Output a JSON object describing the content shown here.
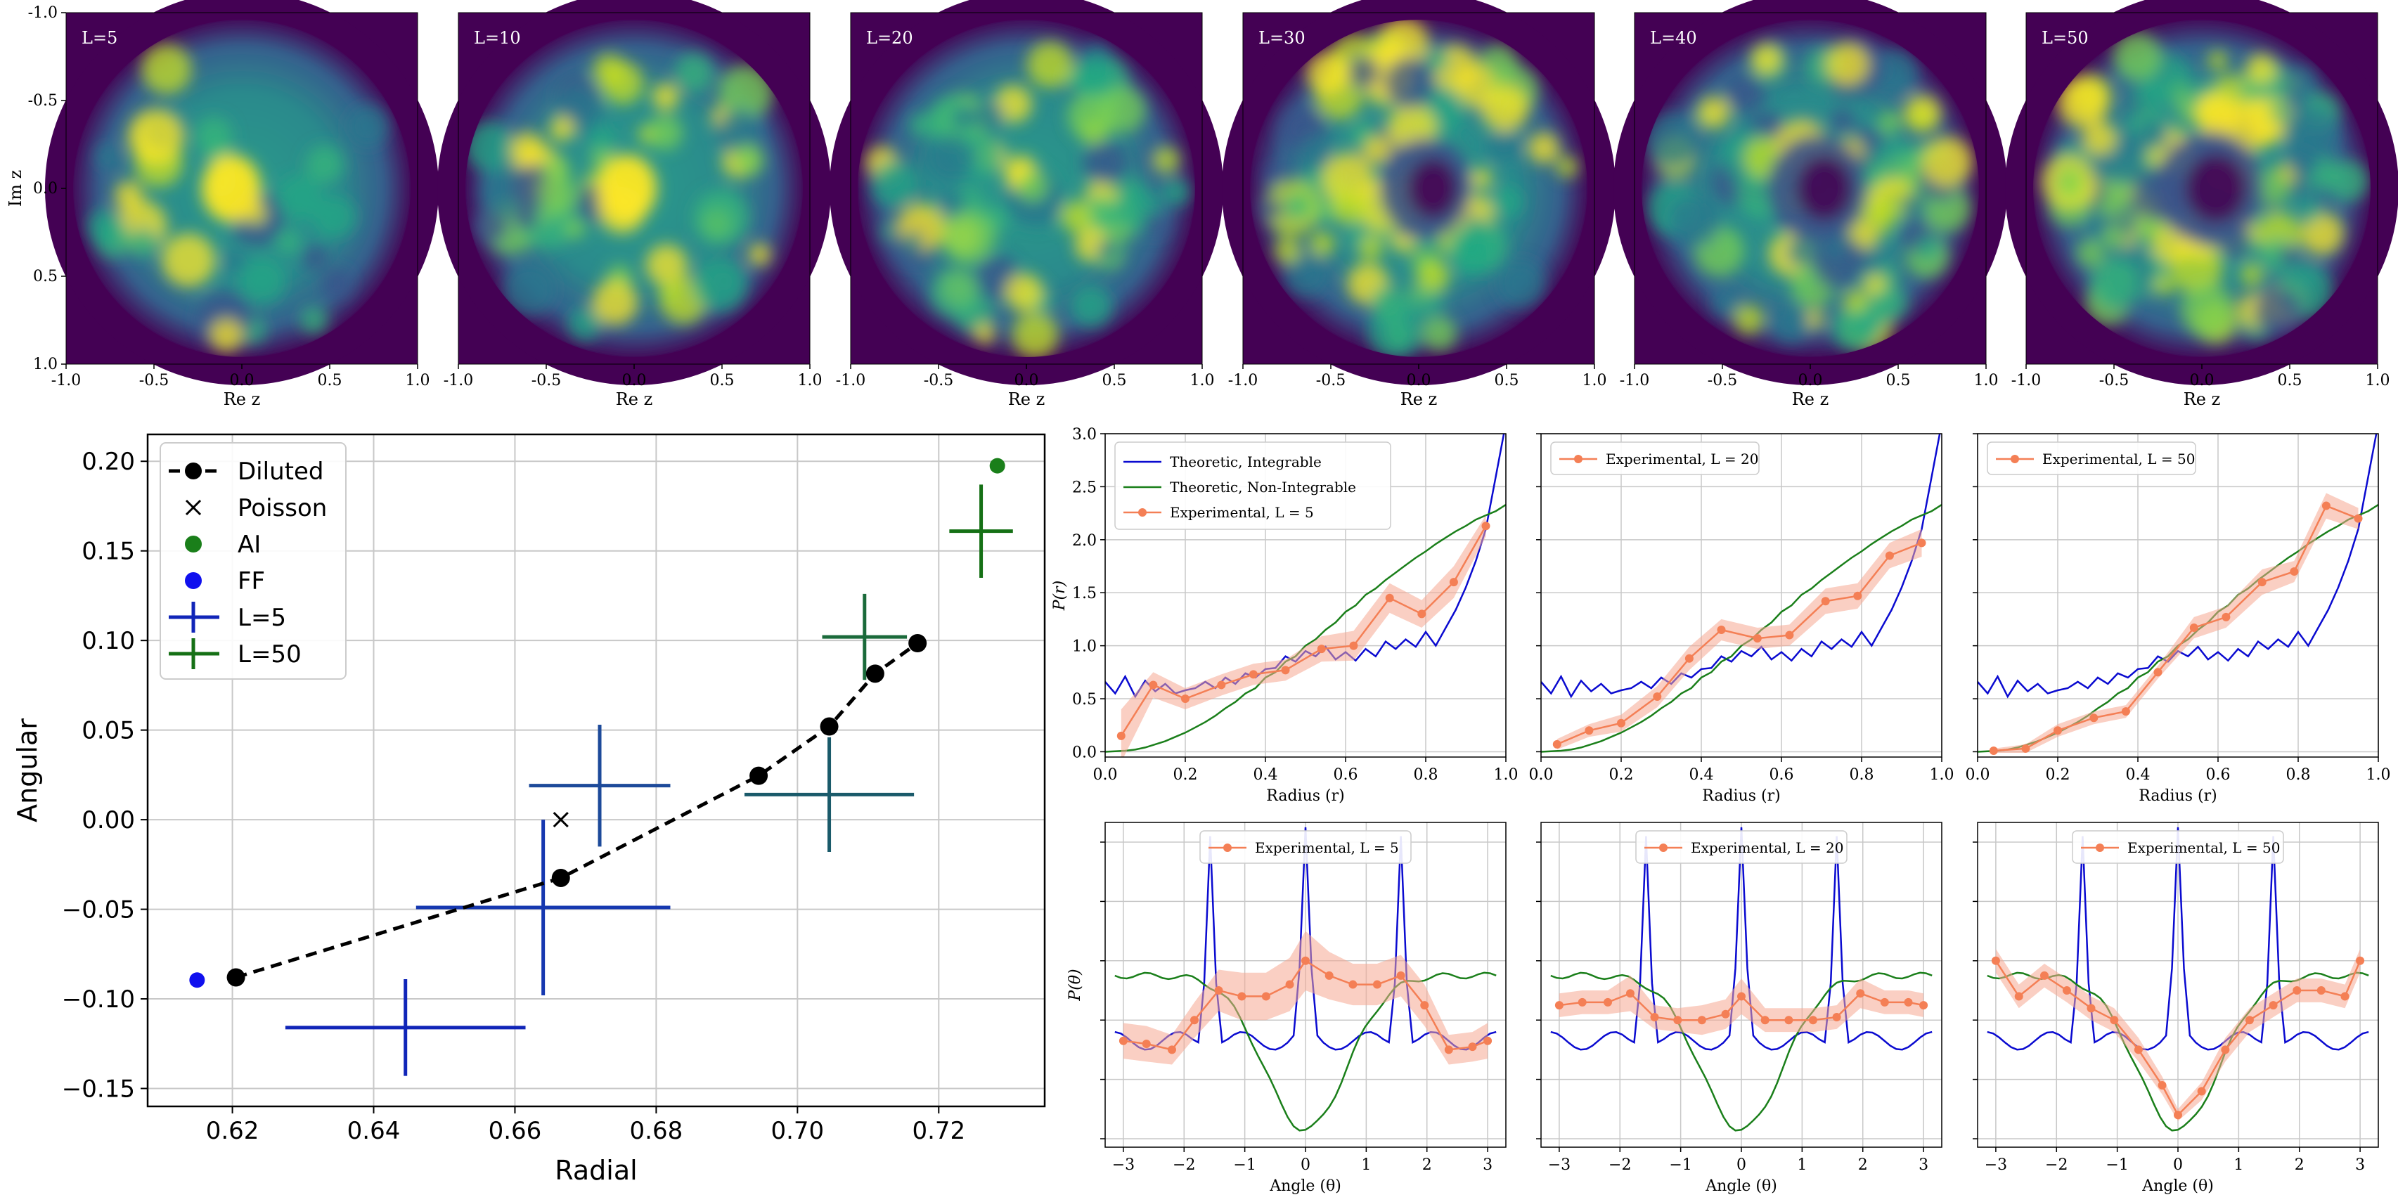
{
  "chart_data": [
    {
      "id": "density",
      "type": "heatmap",
      "panels": [
        "L=5",
        "L=10",
        "L=20",
        "L=30",
        "L=40",
        "L=50"
      ],
      "xlabel": "Re z",
      "ylabel": "Im z",
      "xticks": [
        "-1.0",
        "-0.5",
        "0.0",
        "0.5",
        "1.0"
      ],
      "yticks": [
        "-1.0",
        "-0.5",
        "0.0",
        "0.5",
        "1.0"
      ],
      "xlim": [
        -1.0,
        1.0
      ],
      "ylim": [
        -1.0,
        1.0
      ],
      "colormap": "viridis",
      "background": "#440154"
    },
    {
      "id": "scatter",
      "type": "scatter",
      "xlabel": "Radial",
      "ylabel": "Angular",
      "xlim": [
        0.608,
        0.735
      ],
      "ylim": [
        -0.16,
        0.215
      ],
      "xticks": [
        0.62,
        0.64,
        0.66,
        0.68,
        0.7,
        0.72
      ],
      "xticklabels": [
        "0.62",
        "0.64",
        "0.66",
        "0.68",
        "0.70",
        "0.72"
      ],
      "yticks": [
        -0.15,
        -0.1,
        -0.05,
        0.0,
        0.05,
        0.1,
        0.15,
        0.2
      ],
      "yticklabels": [
        "−0.15",
        "−0.10",
        "−0.05",
        "0.00",
        "0.05",
        "0.10",
        "0.15",
        "0.20"
      ],
      "grid": true,
      "legend_position": "upper-left",
      "legend": [
        {
          "label": "Diluted",
          "marker": "line-dot",
          "color": "#000000"
        },
        {
          "label": "Poisson",
          "marker": "x",
          "color": "#000000"
        },
        {
          "label": "AI",
          "marker": "dot",
          "color": "#1a7f1a"
        },
        {
          "label": "FF",
          "marker": "dot",
          "color": "#1010ee"
        },
        {
          "label": "L=5",
          "marker": "cross",
          "color": "#1025b8"
        },
        {
          "label": "L=50",
          "marker": "cross",
          "color": "#157015"
        }
      ],
      "diluted": [
        [
          0.6205,
          -0.088
        ],
        [
          0.6665,
          -0.0325
        ],
        [
          0.6945,
          0.0245
        ],
        [
          0.7045,
          0.052
        ],
        [
          0.711,
          0.0815
        ],
        [
          0.717,
          0.0985
        ]
      ],
      "poisson": [
        [
          0.6665,
          0.0
        ]
      ],
      "ai": [
        [
          0.7283,
          0.1975
        ]
      ],
      "ff": [
        [
          0.615,
          -0.0895
        ]
      ],
      "errorbars": [
        {
          "x": 0.6445,
          "y": -0.116,
          "xerr": 0.017,
          "yerr": 0.027,
          "color": "#1025b8"
        },
        {
          "x": 0.664,
          "y": -0.049,
          "xerr": 0.018,
          "yerr": 0.049,
          "color": "#1638b0"
        },
        {
          "x": 0.672,
          "y": 0.019,
          "xerr": 0.01,
          "yerr": 0.034,
          "color": "#1d4a9a"
        },
        {
          "x": 0.7045,
          "y": 0.014,
          "xerr": 0.012,
          "yerr": 0.032,
          "color": "#1a5a6a"
        },
        {
          "x": 0.7095,
          "y": 0.102,
          "xerr": 0.006,
          "yerr": 0.024,
          "color": "#1a6a3a"
        },
        {
          "x": 0.726,
          "y": 0.161,
          "xerr": 0.0045,
          "yerr": 0.026,
          "color": "#157015"
        }
      ]
    },
    {
      "id": "radial",
      "type": "line",
      "xlabel": "Radius (r)",
      "ylabel": "P(r)",
      "xlim": [
        0,
        1.0
      ],
      "ylim": [
        -0.05,
        3.0
      ],
      "xticks": [
        "0.0",
        "0.2",
        "0.4",
        "0.6",
        "0.8",
        "1.0"
      ],
      "yticks": [
        "0.0",
        "0.5",
        "1.0",
        "1.5",
        "2.0",
        "2.5",
        "3.0"
      ],
      "theory": {
        "integrable": {
          "name": "Theoretic, Integrable",
          "color": "#0a0ad0",
          "x": [
            0.0,
            0.025,
            0.05,
            0.075,
            0.1,
            0.125,
            0.15,
            0.175,
            0.2,
            0.225,
            0.25,
            0.275,
            0.3,
            0.325,
            0.35,
            0.375,
            0.4,
            0.425,
            0.45,
            0.475,
            0.5,
            0.525,
            0.55,
            0.575,
            0.6,
            0.625,
            0.65,
            0.675,
            0.7,
            0.725,
            0.75,
            0.775,
            0.8,
            0.825,
            0.85,
            0.875,
            0.9,
            0.925,
            0.95,
            0.975,
            1.0
          ],
          "y": [
            0.66,
            0.55,
            0.71,
            0.52,
            0.67,
            0.57,
            0.64,
            0.55,
            0.58,
            0.6,
            0.66,
            0.6,
            0.7,
            0.64,
            0.74,
            0.7,
            0.78,
            0.79,
            0.9,
            0.85,
            0.95,
            0.9,
            0.99,
            0.87,
            0.94,
            0.86,
            0.97,
            0.9,
            1.04,
            0.97,
            1.06,
            0.99,
            1.13,
            1.0,
            1.17,
            1.34,
            1.55,
            1.8,
            2.1,
            2.6,
            3.1
          ]
        },
        "nonintegrable": {
          "name": "Theoretic, Non-Integrable",
          "color": "#1a7f1a",
          "x": [
            0.0,
            0.025,
            0.05,
            0.075,
            0.1,
            0.125,
            0.15,
            0.175,
            0.2,
            0.225,
            0.25,
            0.275,
            0.3,
            0.325,
            0.35,
            0.375,
            0.4,
            0.425,
            0.45,
            0.475,
            0.5,
            0.525,
            0.55,
            0.575,
            0.6,
            0.625,
            0.65,
            0.675,
            0.7,
            0.725,
            0.75,
            0.775,
            0.8,
            0.825,
            0.85,
            0.875,
            0.9,
            0.925,
            0.95,
            0.975,
            1.0
          ],
          "y": [
            0.0,
            0.005,
            0.01,
            0.02,
            0.04,
            0.07,
            0.1,
            0.14,
            0.18,
            0.23,
            0.28,
            0.34,
            0.41,
            0.47,
            0.55,
            0.6,
            0.7,
            0.75,
            0.85,
            0.9,
            1.0,
            1.06,
            1.15,
            1.22,
            1.32,
            1.38,
            1.48,
            1.54,
            1.62,
            1.69,
            1.76,
            1.83,
            1.89,
            1.96,
            2.02,
            2.08,
            2.13,
            2.19,
            2.23,
            2.27,
            2.33
          ]
        }
      },
      "panels": [
        {
          "legend": [
            "Theoretic, Integrable",
            "Theoretic, Non-Integrable",
            "Experimental, L = 5"
          ],
          "show_theory_legend": true,
          "exp_name": "Experimental, L = 5",
          "exp_x": [
            0.04,
            0.12,
            0.2,
            0.29,
            0.37,
            0.45,
            0.54,
            0.62,
            0.71,
            0.79,
            0.87,
            0.95
          ],
          "exp_y": [
            0.15,
            0.63,
            0.5,
            0.63,
            0.73,
            0.77,
            0.97,
            1.0,
            1.45,
            1.3,
            1.6,
            2.13
          ],
          "band": [
            0.25,
            0.12,
            0.1,
            0.1,
            0.1,
            0.1,
            0.12,
            0.14,
            0.14,
            0.13,
            0.15,
            0.1
          ]
        },
        {
          "legend": [
            "Experimental, L = 20"
          ],
          "show_theory_legend": false,
          "exp_name": "Experimental, L = 20",
          "exp_x": [
            0.04,
            0.12,
            0.2,
            0.29,
            0.37,
            0.45,
            0.54,
            0.62,
            0.71,
            0.79,
            0.87,
            0.95
          ],
          "exp_y": [
            0.07,
            0.2,
            0.27,
            0.52,
            0.88,
            1.15,
            1.07,
            1.1,
            1.42,
            1.47,
            1.85,
            1.97
          ],
          "band": [
            0.05,
            0.06,
            0.08,
            0.1,
            0.11,
            0.1,
            0.1,
            0.1,
            0.12,
            0.12,
            0.12,
            0.13
          ]
        },
        {
          "legend": [
            "Experimental, L = 50"
          ],
          "show_theory_legend": false,
          "exp_name": "Experimental, L = 50",
          "exp_x": [
            0.04,
            0.12,
            0.2,
            0.29,
            0.37,
            0.45,
            0.54,
            0.62,
            0.71,
            0.79,
            0.87,
            0.95
          ],
          "exp_y": [
            0.01,
            0.03,
            0.2,
            0.32,
            0.38,
            0.75,
            1.17,
            1.27,
            1.6,
            1.7,
            2.32,
            2.2
          ],
          "band": [
            0.02,
            0.04,
            0.06,
            0.06,
            0.06,
            0.06,
            0.1,
            0.1,
            0.12,
            0.1,
            0.12,
            0.1
          ]
        }
      ]
    },
    {
      "id": "angular",
      "type": "line",
      "xlabel": "Angle (θ)",
      "ylabel": "P(θ)",
      "xlim": [
        -3.3,
        3.3
      ],
      "ylim": [
        0,
        1
      ],
      "xticks": [
        "−3",
        "−2",
        "−1",
        "0",
        "1",
        "2",
        "3"
      ],
      "theory_integrable_spikes": [
        -1.57,
        0.0,
        1.57
      ],
      "panels": [
        {
          "legend": "Experimental, L = 5",
          "exp_x": [
            -3.0,
            -2.62,
            -2.2,
            -1.83,
            -1.43,
            -1.05,
            -0.65,
            -0.26,
            0.0,
            0.39,
            0.78,
            1.18,
            1.57,
            1.96,
            2.36,
            2.75,
            3.0
          ],
          "exp_y": [
            0.33,
            0.32,
            0.3,
            0.4,
            0.5,
            0.48,
            0.48,
            0.52,
            0.6,
            0.55,
            0.52,
            0.52,
            0.55,
            0.45,
            0.3,
            0.31,
            0.33
          ],
          "band": [
            0.06,
            0.06,
            0.05,
            0.06,
            0.07,
            0.08,
            0.08,
            0.09,
            0.1,
            0.08,
            0.07,
            0.07,
            0.07,
            0.07,
            0.05,
            0.05,
            0.06
          ]
        },
        {
          "legend": "Experimental, L = 20",
          "exp_x": [
            -3.0,
            -2.62,
            -2.2,
            -1.83,
            -1.43,
            -1.05,
            -0.65,
            -0.26,
            0.0,
            0.39,
            0.78,
            1.18,
            1.57,
            1.96,
            2.36,
            2.75,
            3.0
          ],
          "exp_y": [
            0.45,
            0.46,
            0.46,
            0.49,
            0.41,
            0.4,
            0.4,
            0.42,
            0.48,
            0.4,
            0.4,
            0.4,
            0.41,
            0.49,
            0.46,
            0.46,
            0.45
          ],
          "band": [
            0.04,
            0.04,
            0.04,
            0.06,
            0.04,
            0.04,
            0.05,
            0.05,
            0.06,
            0.04,
            0.04,
            0.04,
            0.04,
            0.05,
            0.04,
            0.04,
            0.04
          ]
        },
        {
          "legend": "Experimental, L = 50",
          "exp_x": [
            -3.0,
            -2.62,
            -2.2,
            -1.83,
            -1.43,
            -1.05,
            -0.65,
            -0.26,
            0.0,
            0.39,
            0.78,
            1.18,
            1.57,
            1.96,
            2.36,
            2.75,
            3.0
          ],
          "exp_y": [
            0.6,
            0.48,
            0.55,
            0.5,
            0.44,
            0.4,
            0.3,
            0.18,
            0.08,
            0.16,
            0.3,
            0.4,
            0.45,
            0.5,
            0.5,
            0.48,
            0.6
          ],
          "band": [
            0.04,
            0.04,
            0.04,
            0.04,
            0.04,
            0.04,
            0.04,
            0.03,
            0.02,
            0.03,
            0.04,
            0.04,
            0.04,
            0.04,
            0.04,
            0.04,
            0.04
          ]
        }
      ]
    }
  ],
  "colors": {
    "integrable": "#0a0ad0",
    "nonintegrable": "#1a7f1a",
    "experimental": "#f47f55",
    "band": "#f6a891",
    "grid": "#c8c8c8"
  }
}
